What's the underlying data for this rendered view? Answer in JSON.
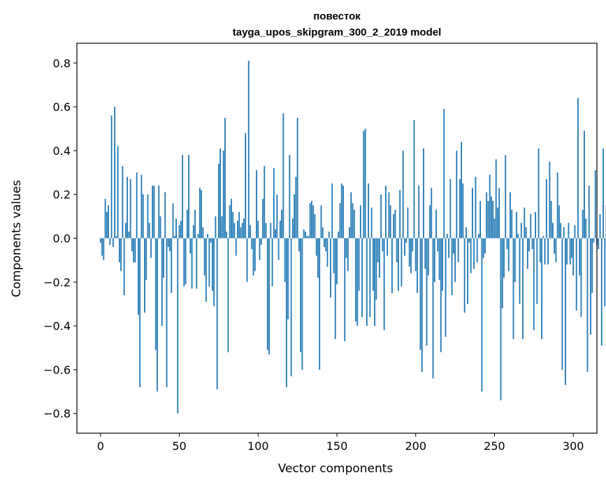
{
  "chart_data": {
    "type": "bar",
    "title_line1": "повесток",
    "title_line2": "tayga_upos_skipgram_300_2_2019 model",
    "xlabel": "Vector components",
    "ylabel": "Components values",
    "xlim": [
      -15,
      315
    ],
    "ylim": [
      -0.89,
      0.89
    ],
    "xticks": [
      0,
      50,
      100,
      150,
      200,
      250,
      300
    ],
    "xtick_labels": [
      "0",
      "50",
      "100",
      "150",
      "200",
      "250",
      "300"
    ],
    "yticks": [
      -0.8,
      -0.6,
      -0.4,
      -0.2,
      0.0,
      0.2,
      0.4,
      0.6,
      0.8
    ],
    "ytick_labels": [
      "−0.8",
      "−0.6",
      "−0.4",
      "−0.2",
      "0.0",
      "0.2",
      "0.4",
      "0.6",
      "0.8"
    ],
    "bar_color": "#1f77b4",
    "grid": false,
    "values": [
      -0.02,
      -0.08,
      -0.1,
      0.18,
      0.12,
      0.15,
      -0.03,
      0.56,
      -0.04,
      0.6,
      0.01,
      0.42,
      -0.11,
      -0.15,
      0.33,
      -0.26,
      0.07,
      0.28,
      0.03,
      0.27,
      -0.06,
      -0.11,
      -0.11,
      0.3,
      -0.35,
      -0.68,
      0.29,
      0.2,
      -0.34,
      -0.19,
      0.2,
      0.07,
      -0.09,
      0.24,
      0.24,
      -0.51,
      -0.7,
      0.24,
      0.1,
      -0.4,
      -0.18,
      0.21,
      -0.68,
      -0.04,
      -0.06,
      -0.25,
      0.16,
      0.01,
      0.09,
      -0.8,
      0.06,
      0.08,
      0.38,
      -0.22,
      -0.21,
      0.13,
      0.38,
      -0.07,
      -0.23,
      0.06,
      0.13,
      -0.23,
      0.02,
      0.23,
      0.22,
      0.05,
      -0.17,
      -0.29,
      0.02,
      -0.22,
      -0.02,
      -0.24,
      -0.31,
      0.1,
      -0.69,
      0.34,
      0.41,
      0.1,
      0.4,
      0.55,
      0.03,
      -0.52,
      0.15,
      0.18,
      0.12,
      0.07,
      -0.08,
      0.08,
      0.12,
      0.05,
      0.07,
      0.09,
      0.48,
      -0.2,
      0.81,
      0.06,
      -0.05,
      -0.17,
      -0.15,
      0.31,
      0.08,
      -0.1,
      -0.03,
      0.18,
      0.33,
      0.07,
      -0.51,
      -0.53,
      0.07,
      -0.22,
      0.32,
      0.04,
      0.2,
      -0.1,
      0.08,
      0.13,
      0.57,
      -0.2,
      -0.68,
      -0.37,
      0.38,
      -0.63,
      0.09,
      0.2,
      0.28,
      0.55,
      -0.06,
      -0.52,
      -0.6,
      0.04,
      0.03,
      0.01,
      0.01,
      0.16,
      0.17,
      0.15,
      0.11,
      -0.08,
      -0.18,
      -0.6,
      0.15,
      0.05,
      -0.04,
      -0.06,
      -0.13,
      0.03,
      -0.27,
      0.25,
      -0.16,
      -0.46,
      -0.21,
      0.03,
      0.16,
      0.25,
      0.24,
      -0.47,
      -0.09,
      -0.15,
      0.05,
      0.21,
      0.16,
      0.13,
      -0.38,
      -0.4,
      -0.24,
      0.15,
      -0.36,
      0.49,
      0.5,
      -0.4,
      0.25,
      -0.36,
      0.14,
      -0.24,
      -0.4,
      -0.28,
      -0.11,
      -0.18,
      0.2,
      -0.06,
      -0.42,
      0.24,
      -0.08,
      0.21,
      0.15,
      -0.25,
      0.11,
      0.13,
      -0.11,
      -0.24,
      0.22,
      -0.22,
      0.4,
      -0.08,
      -0.02,
      0.14,
      -0.13,
      -0.16,
      -0.06,
      0.54,
      -0.15,
      -0.25,
      0.24,
      -0.51,
      -0.61,
      0.41,
      -0.14,
      -0.49,
      -0.17,
      0.15,
      0.23,
      -0.64,
      -0.2,
      0.13,
      -0.06,
      -0.19,
      -0.52,
      -0.24,
      0.59,
      -0.45,
      0.02,
      -0.09,
      0.27,
      -0.26,
      -0.07,
      -0.2,
      0.4,
      -0.11,
      0.27,
      0.44,
      0.25,
      -0.34,
      0.05,
      -0.3,
      -0.02,
      -0.16,
      0.23,
      -0.14,
      0.28,
      -0.11,
      0.02,
      0.17,
      -0.7,
      -0.09,
      -0.07,
      0.21,
      0.17,
      0.29,
      0.19,
      0.17,
      0.09,
      0.36,
      0.14,
      0.23,
      -0.74,
      -0.32,
      -0.18,
      0.38,
      -0.05,
      -0.15,
      0.21,
      0.13,
      -0.46,
      -0.2,
      0.12,
      0.02,
      -0.3,
      0.07,
      -0.46,
      0.14,
      0.05,
      -0.14,
      -0.06,
      0.11,
      -0.05,
      -0.42,
      0.12,
      -0.3,
      0.41,
      -0.11,
      -0.46,
      0.01,
      -0.12,
      0.27,
      -0.12,
      0.35,
      0.17,
      0.07,
      -0.07,
      -0.11,
      0.3,
      0.15,
      0.07,
      -0.6,
      0.05,
      -0.67,
      -0.12,
      0.07,
      -0.12,
      -0.09,
      -0.17,
      0.06,
      -0.33,
      0.64,
      -0.17,
      -0.36,
      0.13,
      0.49,
      0.09,
      -0.61,
      0.24,
      -0.44,
      -0.25,
      -0.02,
      0.31,
      -0.03,
      -0.05,
      0.11,
      -0.49,
      0.41,
      -0.31,
      0.15
    ]
  }
}
